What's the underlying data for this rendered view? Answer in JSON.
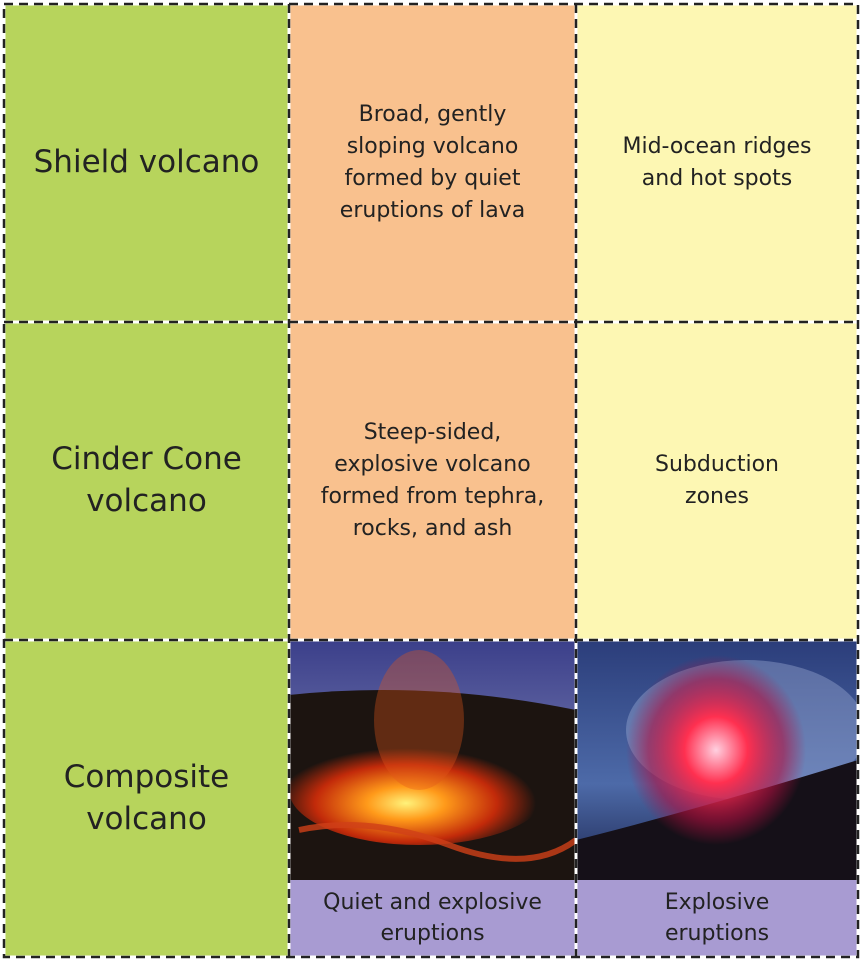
{
  "table": {
    "rows": [
      [
        "Shield volcano",
        "Broad, gently sloping volcano formed by quiet eruptions of lava",
        "Mid-ocean ridges and hot spots"
      ],
      [
        "Cinder Cone volcano",
        "Steep-sided, explosive volcano formed from tephra, rocks, and ash",
        "Subduction zones"
      ],
      [
        "Composite volcano",
        "Quiet and explosive eruptions",
        "Explosive eruptions"
      ]
    ]
  }
}
